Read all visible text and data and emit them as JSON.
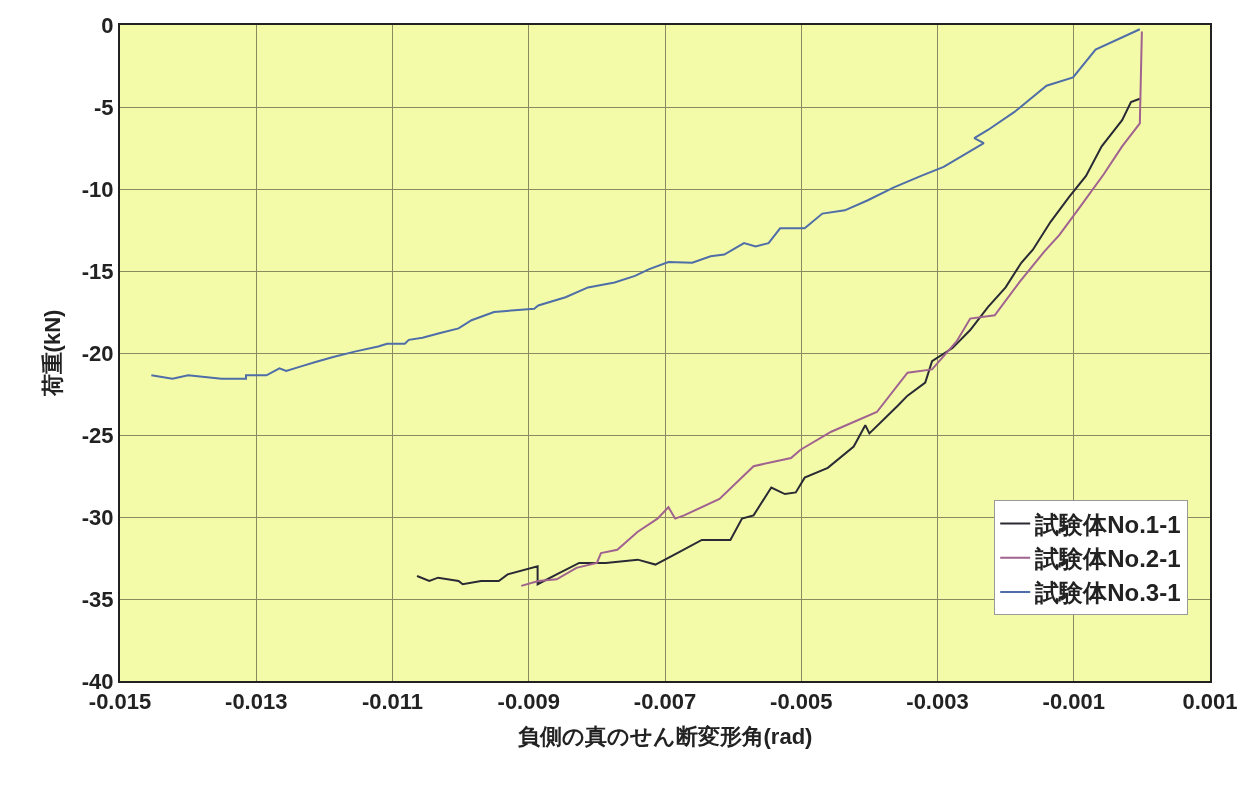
{
  "chart_data": {
    "type": "line",
    "xlabel": "負側の真のせん断変形角(rad)",
    "ylabel": "荷重(kN)",
    "xlim": [
      -0.015,
      0.001
    ],
    "xticks": [
      -0.015,
      -0.013,
      -0.011,
      -0.009,
      -0.007,
      -0.005,
      -0.003,
      -0.001,
      0.001
    ],
    "ylim": [
      -40,
      0
    ],
    "yticks": [
      -40,
      -35,
      -30,
      -25,
      -20,
      -15,
      -10,
      -5,
      0
    ],
    "grid": true,
    "legend": "bottom right",
    "line_style": "solid",
    "marker": "none",
    "series": [
      {
        "name": "試験体No.1-1",
        "color": "#2a2a35",
        "x": [
          -0.01064,
          -0.01046,
          -0.01033,
          -0.01003,
          -0.00997,
          -0.0097,
          -0.00944,
          -0.00931,
          -0.00887,
          -0.00887,
          -0.00859,
          -0.00826,
          -0.00787,
          -0.0074,
          -0.00714,
          -0.00682,
          -0.00646,
          -0.00604,
          -0.00587,
          -0.0057,
          -0.00544,
          -0.00524,
          -0.00508,
          -0.00495,
          -0.00461,
          -0.00423,
          -0.00406,
          -0.004,
          -0.00358,
          -0.00344,
          -0.00318,
          -0.00308,
          -0.00278,
          -0.00252,
          -0.00226,
          -0.002,
          -0.00177,
          -0.0016,
          -0.00134,
          -0.00107,
          -0.00082,
          -0.00059,
          -0.00029,
          -0.00016,
          -3e-05
        ],
        "values": [
          -33.6,
          -33.9,
          -33.7,
          -33.9,
          -34.1,
          -33.9,
          -33.9,
          -33.5,
          -33.0,
          -34.1,
          -33.5,
          -32.8,
          -32.8,
          -32.6,
          -32.9,
          -32.2,
          -31.4,
          -31.4,
          -30.1,
          -29.9,
          -28.2,
          -28.6,
          -28.5,
          -27.6,
          -27.0,
          -25.7,
          -24.4,
          -24.9,
          -23.2,
          -22.6,
          -21.8,
          -20.5,
          -19.7,
          -18.6,
          -17.2,
          -16.0,
          -14.5,
          -13.7,
          -12.0,
          -10.5,
          -9.2,
          -7.4,
          -5.8,
          -4.7,
          -4.5
        ]
      },
      {
        "name": "試験体No.2-1",
        "color": "#a0628f",
        "x": [
          -0.00911,
          -0.00886,
          -0.00859,
          -0.0083,
          -0.008,
          -0.00794,
          -0.0077,
          -0.0074,
          -0.00711,
          -0.00695,
          -0.00685,
          -0.00672,
          -0.0062,
          -0.0057,
          -0.00515,
          -0.00501,
          -0.00456,
          -0.00389,
          -0.00344,
          -0.00308,
          -0.00272,
          -0.00252,
          -0.00216,
          -0.0018,
          -0.00143,
          -0.00121,
          -0.00091,
          -0.00056,
          -0.00029,
          -3e-05,
          0.0
        ],
        "values": [
          -34.2,
          -33.9,
          -33.8,
          -33.1,
          -32.8,
          -32.2,
          -32.0,
          -30.9,
          -30.1,
          -29.4,
          -30.1,
          -29.9,
          -28.9,
          -26.9,
          -26.4,
          -25.9,
          -24.8,
          -23.6,
          -21.2,
          -21.0,
          -19.3,
          -17.9,
          -17.7,
          -15.7,
          -13.8,
          -12.8,
          -11.1,
          -9.1,
          -7.4,
          -6.0,
          -0.4
        ]
      },
      {
        "name": "試験体No.3-1",
        "color": "#4f6ea8",
        "x": [
          -0.01454,
          -0.01423,
          -0.014,
          -0.01351,
          -0.01315,
          -0.01315,
          -0.01285,
          -0.01266,
          -0.01256,
          -0.01233,
          -0.01213,
          -0.01187,
          -0.01154,
          -0.01121,
          -0.01108,
          -0.01082,
          -0.01076,
          -0.01056,
          -0.0103,
          -0.01003,
          -0.00984,
          -0.00951,
          -0.00892,
          -0.00886,
          -0.00846,
          -0.00813,
          -0.00774,
          -0.00744,
          -0.00724,
          -0.00695,
          -0.0066,
          -0.00633,
          -0.00613,
          -0.00584,
          -0.00567,
          -0.00548,
          -0.00531,
          -0.00495,
          -0.00469,
          -0.00436,
          -0.00403,
          -0.00364,
          -0.00324,
          -0.00291,
          -0.00232,
          -0.00246,
          -0.00226,
          -0.00187,
          -0.0014,
          -0.00101,
          -0.00068,
          -3e-05
        ],
        "values": [
          -21.36,
          -21.57,
          -21.36,
          -21.57,
          -21.57,
          -21.36,
          -21.36,
          -20.93,
          -21.1,
          -20.8,
          -20.55,
          -20.24,
          -19.9,
          -19.6,
          -19.44,
          -19.44,
          -19.2,
          -19.07,
          -18.78,
          -18.5,
          -18.0,
          -17.5,
          -17.3,
          -17.1,
          -16.6,
          -16.0,
          -15.7,
          -15.3,
          -14.9,
          -14.45,
          -14.5,
          -14.1,
          -14.0,
          -13.3,
          -13.5,
          -13.3,
          -12.4,
          -12.4,
          -11.5,
          -11.3,
          -10.7,
          -9.9,
          -9.2,
          -8.65,
          -7.2,
          -6.9,
          -6.4,
          -5.3,
          -3.7,
          -3.2,
          -1.5,
          -0.26
        ]
      }
    ]
  }
}
